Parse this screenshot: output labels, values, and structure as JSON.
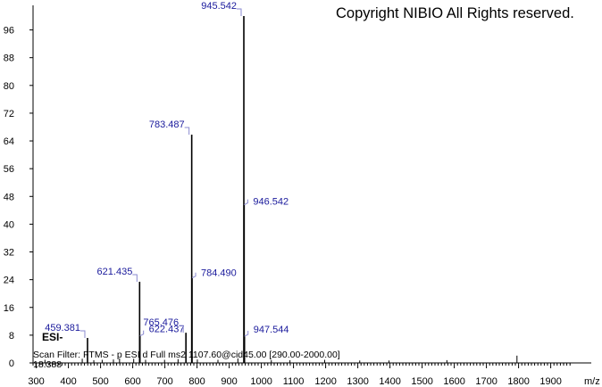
{
  "chart_data": {
    "type": "bar",
    "title": "",
    "xlabel": "m/z",
    "ylabel": "",
    "xlim": [
      290,
      1965
    ],
    "ylim": [
      0,
      104
    ],
    "x_ticks": [
      300,
      400,
      500,
      600,
      700,
      800,
      900,
      1000,
      1100,
      1200,
      1300,
      1400,
      1500,
      1600,
      1700,
      1800,
      1900
    ],
    "y_ticks": [
      0,
      8,
      16,
      24,
      32,
      40,
      48,
      56,
      64,
      72,
      80,
      88,
      96
    ],
    "x_unit_label": "m/z",
    "peaks": [
      {
        "mz": 459.381,
        "intensity": 7.2,
        "label": "459.381"
      },
      {
        "mz": 621.435,
        "intensity": 23.4,
        "label": "621.435"
      },
      {
        "mz": 622.437,
        "intensity": 7.8,
        "label": "622.437"
      },
      {
        "mz": 765.476,
        "intensity": 8.7,
        "label": "765.476"
      },
      {
        "mz": 783.487,
        "intensity": 65.8,
        "label": "783.487"
      },
      {
        "mz": 784.49,
        "intensity": 24.5,
        "label": "784.490"
      },
      {
        "mz": 945.542,
        "intensity": 100,
        "label": "945.542"
      },
      {
        "mz": 946.542,
        "intensity": 45.6,
        "label": "946.542"
      },
      {
        "mz": 947.544,
        "intensity": 7.7,
        "label": "947.544"
      }
    ],
    "minor_peaks": [
      {
        "mz": 327,
        "intensity": 0.9
      },
      {
        "mz": 443,
        "intensity": 1.2
      },
      {
        "mz": 479,
        "intensity": 0.8
      },
      {
        "mz": 505,
        "intensity": 0.9
      },
      {
        "mz": 540,
        "intensity": 1.0
      },
      {
        "mz": 559,
        "intensity": 1.3
      },
      {
        "mz": 603,
        "intensity": 1.2
      },
      {
        "mz": 640,
        "intensity": 0.9
      },
      {
        "mz": 699,
        "intensity": 0.9
      },
      {
        "mz": 741,
        "intensity": 1.1
      },
      {
        "mz": 801,
        "intensity": 1.0
      },
      {
        "mz": 865,
        "intensity": 0.9
      },
      {
        "mz": 927,
        "intensity": 1.3
      },
      {
        "mz": 1031,
        "intensity": 0.8
      },
      {
        "mz": 1089,
        "intensity": 0.8
      },
      {
        "mz": 1197,
        "intensity": 0.9
      },
      {
        "mz": 1306,
        "intensity": 0.7
      },
      {
        "mz": 1397,
        "intensity": 0.7
      },
      {
        "mz": 1577,
        "intensity": 0.8
      },
      {
        "mz": 1795,
        "intensity": 2.1
      }
    ]
  },
  "annotations": {
    "copyright": "Copyright NIBIO All Rights reserved.",
    "ionization": "ESI-",
    "scan_filter": "Scan Filter: FTMS - p ESI d Full ms2 1107.60@cid45.00 [290.00-2000.00]",
    "minor_label": "18.388"
  },
  "colors": {
    "peak": "#000000",
    "peak_label": "#1a1a9c",
    "label_connector": "#8a8ad0",
    "axis": "#000000"
  }
}
